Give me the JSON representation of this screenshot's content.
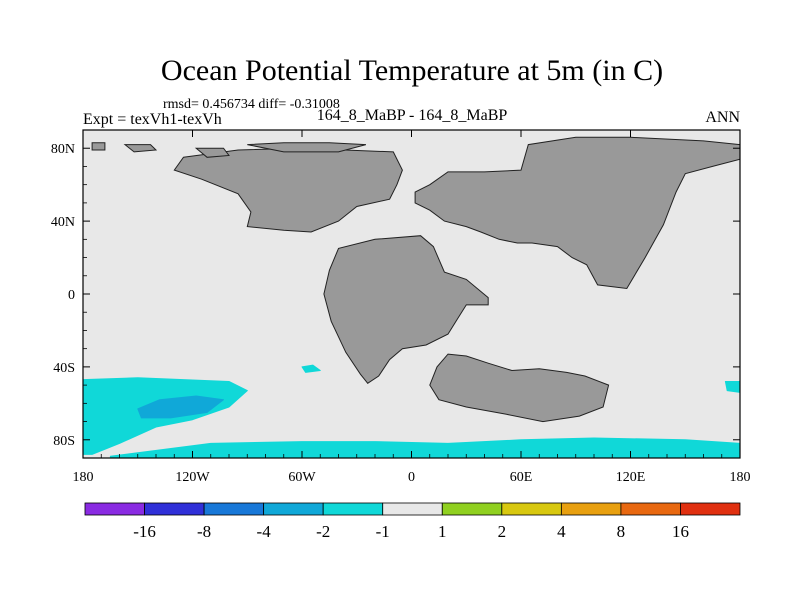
{
  "chart_data": {
    "type": "heatmap",
    "title": "Ocean Potential Temperature at 5m (in C)",
    "stats_text": "rmsd= 0.456734 diff= -0.31008",
    "left_label": "Expt = texVh1-texVh",
    "center_label": "164_8_MaBP - 164_8_MaBP",
    "right_label": "ANN",
    "xlim": [
      -180,
      180
    ],
    "ylim": [
      -90,
      90
    ],
    "x_ticks": [
      {
        "value": -180,
        "label": "180"
      },
      {
        "value": -120,
        "label": "120W"
      },
      {
        "value": -60,
        "label": "60W"
      },
      {
        "value": 0,
        "label": "0"
      },
      {
        "value": 60,
        "label": "60E"
      },
      {
        "value": 120,
        "label": "120E"
      },
      {
        "value": 180,
        "label": "180"
      }
    ],
    "y_ticks": [
      {
        "value": 80,
        "label": "80N"
      },
      {
        "value": 40,
        "label": "40N"
      },
      {
        "value": 0,
        "label": "0"
      },
      {
        "value": -40,
        "label": "40S"
      },
      {
        "value": -80,
        "label": "80S"
      }
    ],
    "colorbar": {
      "levels": [
        "-16",
        "-8",
        "-4",
        "-2",
        "-1",
        "1",
        "2",
        "4",
        "8",
        "16"
      ],
      "colors": [
        "#8a2be2",
        "#3030d8",
        "#1878d8",
        "#10a8d8",
        "#10d8d8",
        "#e8e8e8",
        "#90d020",
        "#d8c810",
        "#e8a010",
        "#e86810",
        "#e03010"
      ]
    },
    "background_color": "#e8e8e8",
    "land_color": "#999999",
    "land_masses": [
      {
        "name": "north-america",
        "points": [
          [
            -125,
            75
          ],
          [
            -95,
            79
          ],
          [
            -60,
            80
          ],
          [
            -10,
            78
          ],
          [
            -5,
            68
          ],
          [
            -8,
            60
          ],
          [
            -12,
            52
          ],
          [
            -30,
            48
          ],
          [
            -40,
            40
          ],
          [
            -55,
            34
          ],
          [
            -70,
            35
          ],
          [
            -90,
            37
          ],
          [
            -88,
            45
          ],
          [
            -95,
            55
          ],
          [
            -115,
            63
          ],
          [
            -130,
            68
          ]
        ]
      },
      {
        "name": "greenland-cap",
        "points": [
          [
            -90,
            82
          ],
          [
            -70,
            83
          ],
          [
            -45,
            83
          ],
          [
            -25,
            82
          ],
          [
            -40,
            78
          ],
          [
            -70,
            78
          ]
        ]
      },
      {
        "name": "arctic-island-west",
        "points": [
          [
            -175,
            83
          ],
          [
            -168,
            83
          ],
          [
            -168,
            79
          ],
          [
            -175,
            79
          ]
        ]
      },
      {
        "name": "arctic-island-mid",
        "points": [
          [
            -157,
            82
          ],
          [
            -143,
            82
          ],
          [
            -140,
            79
          ],
          [
            -152,
            78
          ]
        ]
      },
      {
        "name": "arctic-island-east",
        "points": [
          [
            -118,
            80
          ],
          [
            -103,
            80
          ],
          [
            -100,
            76
          ],
          [
            -112,
            75
          ]
        ]
      },
      {
        "name": "eurasia",
        "points": [
          [
            10,
            60
          ],
          [
            20,
            67
          ],
          [
            40,
            67
          ],
          [
            60,
            68
          ],
          [
            64,
            82
          ],
          [
            90,
            86
          ],
          [
            120,
            86
          ],
          [
            160,
            84
          ],
          [
            180,
            82
          ],
          [
            180,
            74
          ],
          [
            165,
            70
          ],
          [
            150,
            66
          ],
          [
            145,
            56
          ],
          [
            138,
            38
          ],
          [
            128,
            20
          ],
          [
            118,
            3
          ],
          [
            102,
            5
          ],
          [
            96,
            16
          ],
          [
            88,
            20
          ],
          [
            80,
            26
          ],
          [
            66,
            28
          ],
          [
            58,
            28
          ],
          [
            48,
            30
          ],
          [
            38,
            34
          ],
          [
            30,
            37
          ],
          [
            18,
            40
          ],
          [
            10,
            46
          ],
          [
            2,
            50
          ],
          [
            2,
            56
          ]
        ]
      },
      {
        "name": "africa-south-america",
        "points": [
          [
            -40,
            25
          ],
          [
            -45,
            13
          ],
          [
            -48,
            0
          ],
          [
            -44,
            -15
          ],
          [
            -36,
            -32
          ],
          [
            -28,
            -44
          ],
          [
            -24,
            -49
          ],
          [
            -18,
            -45
          ],
          [
            -12,
            -36
          ],
          [
            -5,
            -30
          ],
          [
            8,
            -28
          ],
          [
            20,
            -22
          ],
          [
            25,
            -14
          ],
          [
            30,
            -6
          ],
          [
            42,
            -6
          ],
          [
            42,
            -2
          ],
          [
            30,
            8
          ],
          [
            18,
            12
          ],
          [
            12,
            26
          ],
          [
            5,
            32
          ],
          [
            -20,
            30
          ]
        ]
      },
      {
        "name": "south-landmass",
        "points": [
          [
            20,
            -33
          ],
          [
            30,
            -34
          ],
          [
            42,
            -38
          ],
          [
            55,
            -42
          ],
          [
            70,
            -41
          ],
          [
            85,
            -43
          ],
          [
            95,
            -45
          ],
          [
            108,
            -50
          ],
          [
            105,
            -62
          ],
          [
            92,
            -67
          ],
          [
            72,
            -70
          ],
          [
            52,
            -66
          ],
          [
            30,
            -62
          ],
          [
            15,
            -58
          ],
          [
            10,
            -50
          ],
          [
            14,
            -40
          ]
        ]
      }
    ],
    "anomaly_regions": [
      {
        "level": "-2 to -1",
        "color": "#10d8d8",
        "points": [
          [
            -180,
            -47
          ],
          [
            -150,
            -46
          ],
          [
            -100,
            -48
          ],
          [
            -90,
            -53
          ],
          [
            -100,
            -62
          ],
          [
            -120,
            -69
          ],
          [
            -140,
            -73
          ],
          [
            -160,
            -82
          ],
          [
            -175,
            -88
          ],
          [
            -180,
            -88
          ]
        ]
      },
      {
        "level": "-2 to -1",
        "color": "#10d8d8",
        "points": [
          [
            -165,
            -89
          ],
          [
            -110,
            -82
          ],
          [
            -60,
            -81
          ],
          [
            -20,
            -81
          ],
          [
            20,
            -82
          ],
          [
            60,
            -80
          ],
          [
            100,
            -79
          ],
          [
            150,
            -80
          ],
          [
            180,
            -82
          ],
          [
            180,
            -90
          ],
          [
            -165,
            -90
          ]
        ]
      },
      {
        "level": "-4 to -2",
        "color": "#10a8d8",
        "points": [
          [
            -150,
            -63
          ],
          [
            -138,
            -58
          ],
          [
            -118,
            -56
          ],
          [
            -103,
            -58
          ],
          [
            -112,
            -65
          ],
          [
            -132,
            -68
          ],
          [
            -148,
            -68
          ]
        ]
      },
      {
        "level": "-2 to -1",
        "color": "#10d8d8",
        "points": [
          [
            -60,
            -40
          ],
          [
            -54,
            -39
          ],
          [
            -50,
            -42
          ],
          [
            -58,
            -43
          ]
        ]
      },
      {
        "level": "-2 to -1",
        "color": "#10d8d8",
        "points": [
          [
            172,
            -48
          ],
          [
            180,
            -48
          ],
          [
            180,
            -54
          ],
          [
            173,
            -53
          ]
        ]
      }
    ]
  }
}
